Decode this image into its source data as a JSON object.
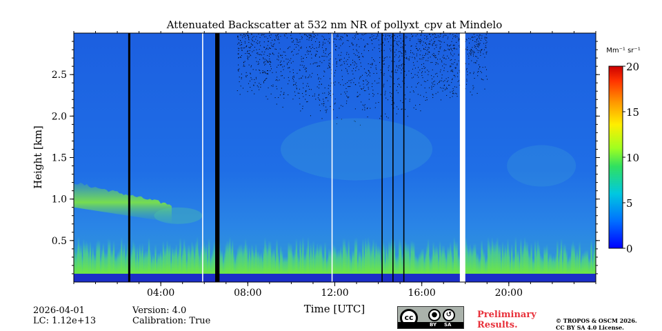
{
  "chart_data": {
    "type": "heatmap",
    "title": "Attenuated Backscatter at 532 nm NR of pollyxt_cpv at Mindelo",
    "xlabel": "Time [UTC]",
    "ylabel": "Height [km]",
    "xlim": [
      0,
      24
    ],
    "ylim": [
      0,
      3.0
    ],
    "x_ticks": [
      {
        "value": 4,
        "label": "04:00"
      },
      {
        "value": 8,
        "label": "08:00"
      },
      {
        "value": 12,
        "label": "12:00"
      },
      {
        "value": 16,
        "label": "16:00"
      },
      {
        "value": 20,
        "label": "20:00"
      }
    ],
    "y_ticks": [
      {
        "value": 0.5,
        "label": "0.5"
      },
      {
        "value": 1.0,
        "label": "1.0"
      },
      {
        "value": 1.5,
        "label": "1.5"
      },
      {
        "value": 2.0,
        "label": "2.0"
      },
      {
        "value": 2.5,
        "label": "2.5"
      }
    ],
    "colorbar": {
      "label": "Mm⁻¹ sr⁻¹",
      "range": [
        0,
        20
      ],
      "ticks": [
        "0",
        "5",
        "10",
        "15",
        "20"
      ],
      "colormap": "jet"
    },
    "data_gaps": [
      {
        "start": 2.5,
        "end": 2.6,
        "type": "no-data"
      },
      {
        "start": 5.9,
        "end": 5.95,
        "type": "white"
      },
      {
        "start": 6.5,
        "end": 6.7,
        "type": "no-data"
      },
      {
        "start": 11.85,
        "end": 11.9,
        "type": "white"
      },
      {
        "start": 14.15,
        "end": 14.2,
        "type": "no-data"
      },
      {
        "start": 14.65,
        "end": 14.7,
        "type": "no-data"
      },
      {
        "start": 15.15,
        "end": 15.2,
        "type": "no-data"
      },
      {
        "start": 17.75,
        "end": 18.0,
        "type": "white"
      }
    ],
    "features": {
      "boundary_layer_top_km": 0.5,
      "elevated_aerosol_layer_km": [
        0.9,
        1.2
      ],
      "background_value": 3,
      "near_surface_band_km": [
        0.0,
        0.1
      ]
    }
  },
  "footer": {
    "date": "2026-04-01",
    "lc": "LC: 1.12e+13",
    "version": "Version: 4.0",
    "calibration": "Calibration: True",
    "preliminary_line1": "Preliminary",
    "preliminary_line2": "Results.",
    "copyright_line1": "© TROPOS & OSCM 2026.",
    "copyright_line2": "CC BY SA 4.0 License.",
    "cc_badge": {
      "cc": "cc",
      "by": "BY",
      "sa": "SA"
    }
  },
  "colors": {
    "background": "#1d5ee0",
    "noise_dot": "#000000",
    "gap_white": "#ffffff",
    "preliminary": "#e8303a"
  }
}
